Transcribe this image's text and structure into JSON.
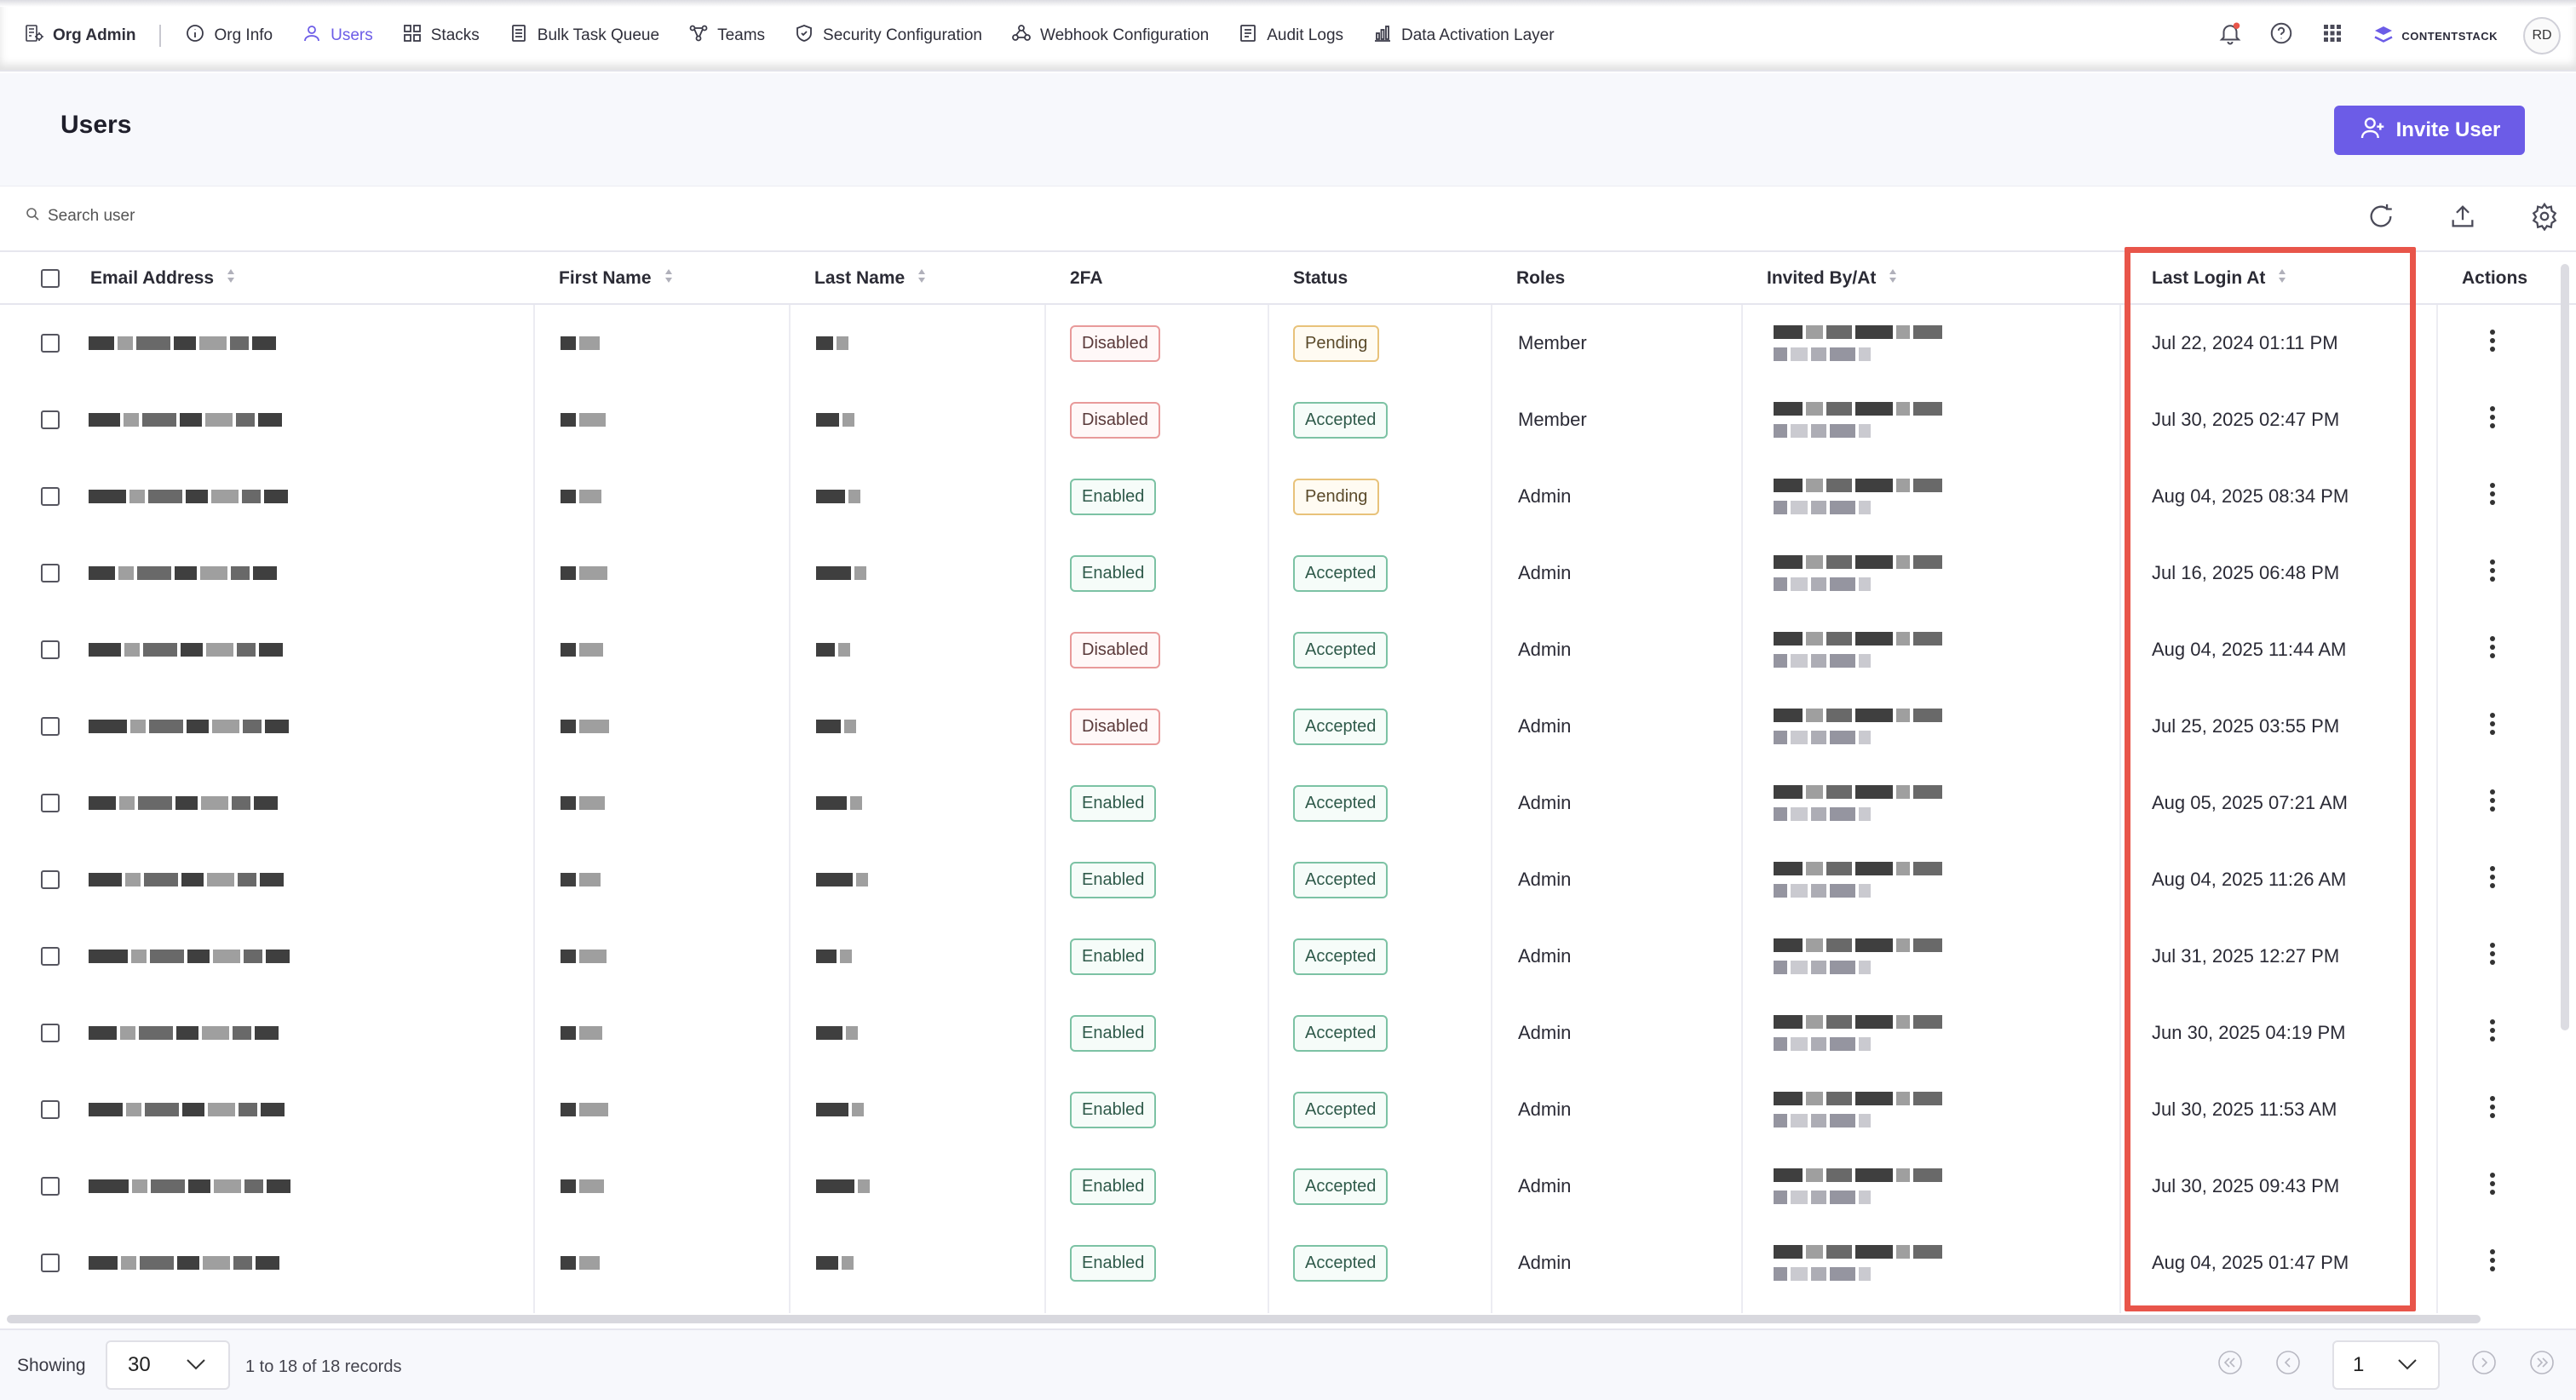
{
  "nav": {
    "brand": "Org Admin",
    "items": [
      {
        "label": "Org Info",
        "icon": "info-icon",
        "active": false
      },
      {
        "label": "Users",
        "icon": "user-icon",
        "active": true
      },
      {
        "label": "Stacks",
        "icon": "grid-icon",
        "active": false
      },
      {
        "label": "Bulk Task Queue",
        "icon": "queue-icon",
        "active": false
      },
      {
        "label": "Teams",
        "icon": "teams-icon",
        "active": false
      },
      {
        "label": "Security Configuration",
        "icon": "shield-icon",
        "active": false
      },
      {
        "label": "Webhook Configuration",
        "icon": "webhook-icon",
        "active": false
      },
      {
        "label": "Audit Logs",
        "icon": "log-icon",
        "active": false
      },
      {
        "label": "Data Activation Layer",
        "icon": "chart-icon",
        "active": false
      }
    ],
    "logo_text": "CONTENTSTACK",
    "avatar_initials": "RD"
  },
  "page": {
    "title": "Users",
    "invite_label": "Invite User",
    "accent": "#6c5ce7"
  },
  "search": {
    "placeholder": "Search user"
  },
  "table": {
    "columns": [
      "Email Address",
      "First Name",
      "Last Name",
      "2FA",
      "Status",
      "Roles",
      "Invited By/At",
      "Last Login At",
      "Actions"
    ],
    "rows": [
      {
        "twofa": "Disabled",
        "status": "Pending",
        "role": "Member",
        "last_login": "Jul 22, 2024 01:11 PM"
      },
      {
        "twofa": "Disabled",
        "status": "Accepted",
        "role": "Member",
        "last_login": "Jul 30, 2025 02:47 PM"
      },
      {
        "twofa": "Enabled",
        "status": "Pending",
        "role": "Admin",
        "last_login": "Aug 04, 2025 08:34 PM"
      },
      {
        "twofa": "Enabled",
        "status": "Accepted",
        "role": "Admin",
        "last_login": "Jul 16, 2025 06:48 PM"
      },
      {
        "twofa": "Disabled",
        "status": "Accepted",
        "role": "Admin",
        "last_login": "Aug 04, 2025 11:44 AM"
      },
      {
        "twofa": "Disabled",
        "status": "Accepted",
        "role": "Admin",
        "last_login": "Jul 25, 2025 03:55 PM"
      },
      {
        "twofa": "Enabled",
        "status": "Accepted",
        "role": "Admin",
        "last_login": "Aug 05, 2025 07:21 AM"
      },
      {
        "twofa": "Enabled",
        "status": "Accepted",
        "role": "Admin",
        "last_login": "Aug 04, 2025 11:26 AM"
      },
      {
        "twofa": "Enabled",
        "status": "Accepted",
        "role": "Admin",
        "last_login": "Jul 31, 2025 12:27 PM"
      },
      {
        "twofa": "Enabled",
        "status": "Accepted",
        "role": "Admin",
        "last_login": "Jun 30, 2025 04:19 PM"
      },
      {
        "twofa": "Enabled",
        "status": "Accepted",
        "role": "Admin",
        "last_login": "Jul 30, 2025 11:53 AM"
      },
      {
        "twofa": "Enabled",
        "status": "Accepted",
        "role": "Admin",
        "last_login": "Jul 30, 2025 09:43 PM"
      },
      {
        "twofa": "Enabled",
        "status": "Accepted",
        "role": "Admin",
        "last_login": "Aug 04, 2025 01:47 PM"
      }
    ],
    "highlight_color": "#e8554a"
  },
  "footer": {
    "showing_label": "Showing",
    "page_size": "30",
    "records_text": "1 to 18 of 18 records",
    "current_page": "1"
  }
}
